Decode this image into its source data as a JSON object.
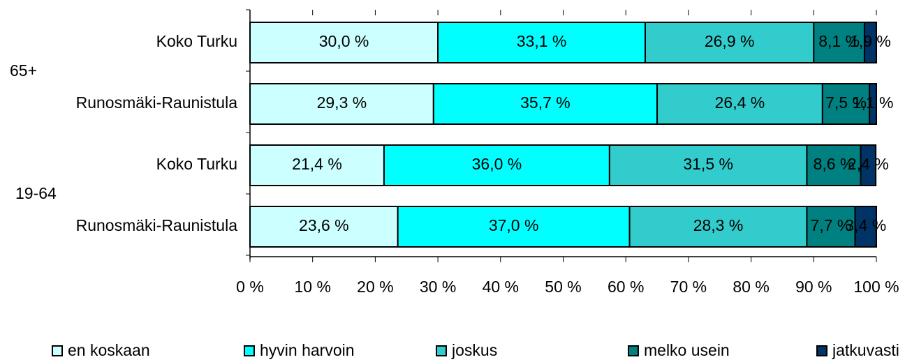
{
  "chart_data": {
    "type": "stacked_barh",
    "categories": [
      "Koko Turku",
      "Runosmäki-Raunistula",
      "Koko Turku",
      "Runosmäki-Raunistula"
    ],
    "group_labels": [
      "65+",
      "19-64"
    ],
    "series": [
      {
        "name": "en koskaan",
        "color": "#ccffff",
        "values": [
          30.0,
          29.3,
          21.4,
          23.6
        ],
        "value_labels": [
          "30,0 %",
          "29,3 %",
          "21,4 %",
          "23,6 %"
        ]
      },
      {
        "name": "hyvin harvoin",
        "color": "#00ffff",
        "values": [
          33.1,
          35.7,
          36.0,
          37.0
        ],
        "value_labels": [
          "33,1 %",
          "35,7 %",
          "36,0 %",
          "37,0 %"
        ]
      },
      {
        "name": "joskus",
        "color": "#33cccc",
        "values": [
          26.9,
          26.4,
          31.5,
          28.3
        ],
        "value_labels": [
          "26,9 %",
          "26,4 %",
          "31,5 %",
          "28,3 %"
        ]
      },
      {
        "name": "melko usein",
        "color": "#008080",
        "values": [
          8.1,
          7.5,
          8.6,
          7.7
        ],
        "value_labels": [
          "8,1 %",
          "7,5 %",
          "8,6 %",
          "7,7 %"
        ]
      },
      {
        "name": "jatkuvasti",
        "color": "#003366",
        "values": [
          1.9,
          1.1,
          2.4,
          3.4
        ],
        "value_labels": [
          "1,9 %",
          "1,1 %",
          "2,4 %",
          "3,4 %"
        ]
      }
    ],
    "xlim": [
      0,
      100
    ],
    "xticks": [
      {
        "value": 0,
        "label": "0 %"
      },
      {
        "value": 10,
        "label": "10 %"
      },
      {
        "value": 20,
        "label": "20 %"
      },
      {
        "value": 30,
        "label": "30 %"
      },
      {
        "value": 40,
        "label": "40 %"
      },
      {
        "value": 50,
        "label": "50 %"
      },
      {
        "value": 60,
        "label": "60 %"
      },
      {
        "value": 70,
        "label": "70 %"
      },
      {
        "value": 80,
        "label": "80 %"
      },
      {
        "value": 90,
        "label": "90 %"
      },
      {
        "value": 100,
        "label": "100 %"
      }
    ],
    "legend": "bottom"
  }
}
